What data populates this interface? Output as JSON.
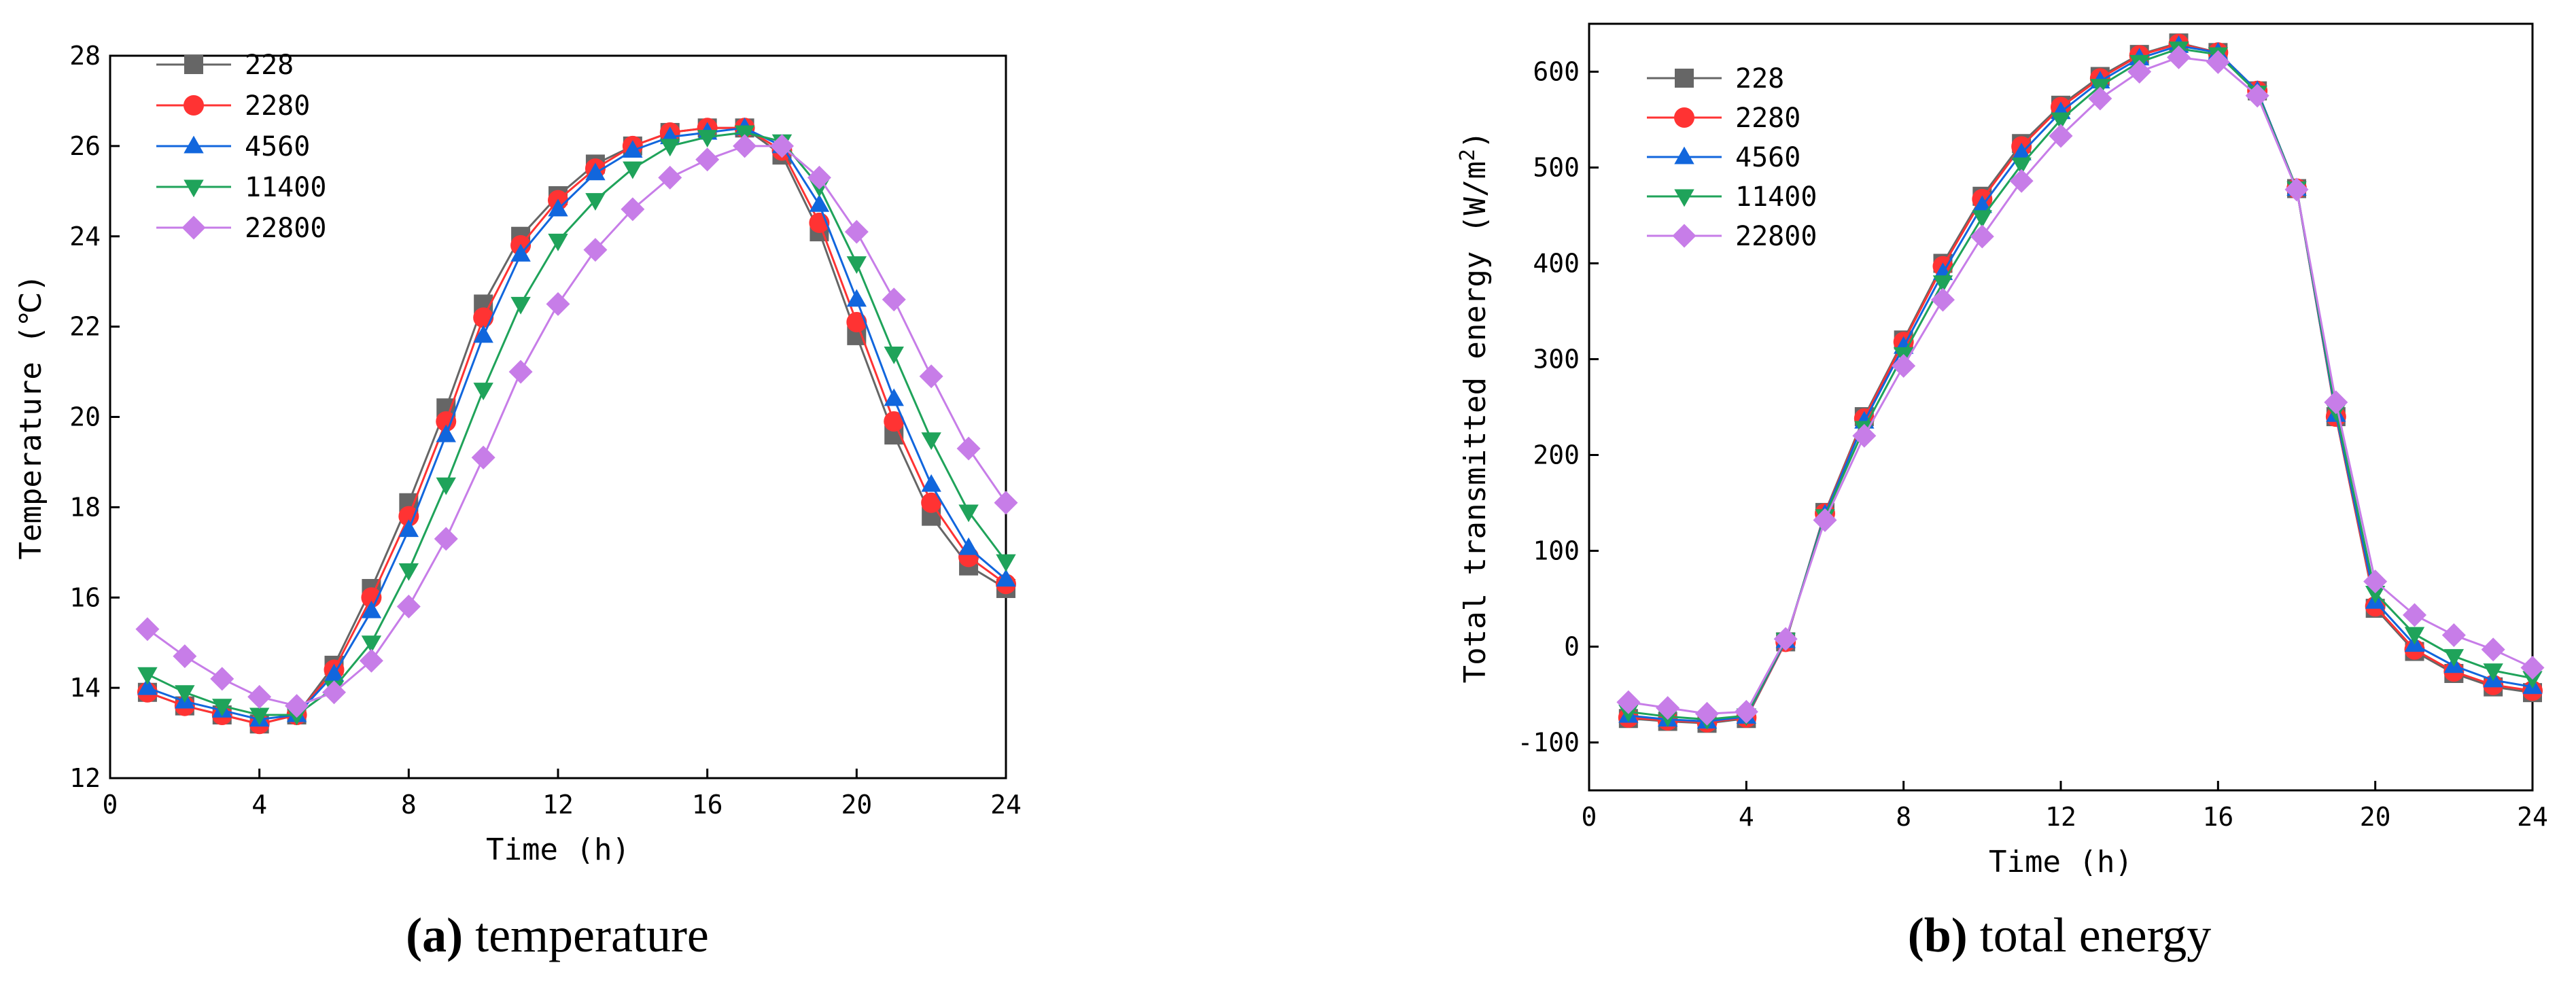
{
  "chart_data": [
    {
      "id": "temperature",
      "type": "line",
      "caption_label": "(a)",
      "caption_text": " temperature",
      "xlabel": "Time (h)",
      "ylabel": "Temperature (℃)",
      "xlim": [
        0,
        24
      ],
      "ylim": [
        12,
        28
      ],
      "xticks": [
        0,
        4,
        8,
        12,
        16,
        20,
        24
      ],
      "yticks": [
        12,
        14,
        16,
        18,
        20,
        22,
        24,
        26,
        28
      ],
      "legend_position": "top-left",
      "x": [
        1,
        2,
        3,
        4,
        5,
        6,
        7,
        8,
        9,
        10,
        11,
        12,
        13,
        14,
        15,
        16,
        17,
        18,
        19,
        20,
        21,
        22,
        23,
        24
      ],
      "series": [
        {
          "name": "228",
          "color": "#666666",
          "marker": "square",
          "values": [
            13.9,
            13.6,
            13.4,
            13.2,
            13.4,
            14.5,
            16.2,
            18.1,
            20.2,
            22.5,
            24.0,
            24.9,
            25.6,
            26.0,
            26.3,
            26.4,
            26.4,
            25.8,
            24.1,
            21.8,
            19.6,
            17.8,
            16.7,
            16.2
          ]
        },
        {
          "name": "2280",
          "color": "#ff3333",
          "marker": "circle",
          "values": [
            13.9,
            13.6,
            13.4,
            13.2,
            13.4,
            14.4,
            16.0,
            17.8,
            19.9,
            22.2,
            23.8,
            24.8,
            25.5,
            26.0,
            26.3,
            26.4,
            26.4,
            25.9,
            24.3,
            22.1,
            19.9,
            18.1,
            16.9,
            16.3
          ]
        },
        {
          "name": "4560",
          "color": "#1166dd",
          "marker": "triangle-up",
          "values": [
            14.0,
            13.7,
            13.5,
            13.3,
            13.4,
            14.3,
            15.7,
            17.5,
            19.6,
            21.8,
            23.6,
            24.6,
            25.4,
            25.9,
            26.2,
            26.3,
            26.4,
            26.0,
            24.7,
            22.6,
            20.4,
            18.5,
            17.1,
            16.4
          ]
        },
        {
          "name": "11400",
          "color": "#1fa35a",
          "marker": "triangle-down",
          "values": [
            14.3,
            13.9,
            13.6,
            13.4,
            13.4,
            14.0,
            15.0,
            16.6,
            18.5,
            20.6,
            22.5,
            23.9,
            24.8,
            25.5,
            26.0,
            26.2,
            26.3,
            26.1,
            25.1,
            23.4,
            21.4,
            19.5,
            17.9,
            16.8
          ]
        },
        {
          "name": "22800",
          "color": "#c77de8",
          "marker": "diamond",
          "values": [
            15.3,
            14.7,
            14.2,
            13.8,
            13.6,
            13.9,
            14.6,
            15.8,
            17.3,
            19.1,
            21.0,
            22.5,
            23.7,
            24.6,
            25.3,
            25.7,
            26.0,
            26.0,
            25.3,
            24.1,
            22.6,
            20.9,
            19.3,
            18.1
          ]
        }
      ]
    },
    {
      "id": "total_energy",
      "type": "line",
      "caption_label": "(b)",
      "caption_text": " total energy",
      "xlabel": "Time (h)",
      "ylabel_main": "Total transmitted energy (W/m",
      "ylabel_sup": "2",
      "ylabel_end": ")",
      "xlim": [
        0,
        24
      ],
      "ylim": [
        -150,
        650
      ],
      "xticks": [
        0,
        4,
        8,
        12,
        16,
        20,
        24
      ],
      "yticks": [
        -100,
        0,
        100,
        200,
        300,
        400,
        500,
        600
      ],
      "legend_position": "top-left",
      "x": [
        1,
        2,
        3,
        4,
        5,
        6,
        7,
        8,
        9,
        10,
        11,
        12,
        13,
        14,
        15,
        16,
        17,
        18,
        19,
        20,
        21,
        22,
        23,
        24
      ],
      "series": [
        {
          "name": "228",
          "color": "#666666",
          "marker": "square",
          "values": [
            -75,
            -78,
            -80,
            -75,
            5,
            140,
            240,
            320,
            400,
            470,
            525,
            565,
            595,
            618,
            630,
            620,
            580,
            478,
            240,
            40,
            -5,
            -28,
            -42,
            -48
          ]
        },
        {
          "name": "2280",
          "color": "#ff3333",
          "marker": "circle",
          "values": [
            -74,
            -77,
            -79,
            -74,
            5,
            139,
            238,
            318,
            397,
            467,
            522,
            563,
            593,
            617,
            629,
            620,
            580,
            478,
            240,
            42,
            -3,
            -26,
            -40,
            -46
          ]
        },
        {
          "name": "4560",
          "color": "#1166dd",
          "marker": "triangle-up",
          "values": [
            -72,
            -76,
            -78,
            -73,
            6,
            138,
            235,
            313,
            390,
            460,
            515,
            558,
            590,
            614,
            627,
            620,
            580,
            478,
            242,
            47,
            2,
            -20,
            -35,
            -42
          ]
        },
        {
          "name": "11400",
          "color": "#1fa35a",
          "marker": "triangle-down",
          "values": [
            -68,
            -73,
            -76,
            -72,
            7,
            136,
            228,
            305,
            380,
            448,
            503,
            550,
            585,
            610,
            624,
            618,
            578,
            478,
            246,
            56,
            13,
            -10,
            -25,
            -33
          ]
        },
        {
          "name": "22800",
          "color": "#c77de8",
          "marker": "diamond",
          "values": [
            -58,
            -64,
            -70,
            -68,
            8,
            132,
            220,
            293,
            362,
            428,
            486,
            533,
            572,
            600,
            615,
            610,
            575,
            477,
            255,
            68,
            33,
            12,
            -3,
            -22
          ]
        }
      ]
    }
  ]
}
